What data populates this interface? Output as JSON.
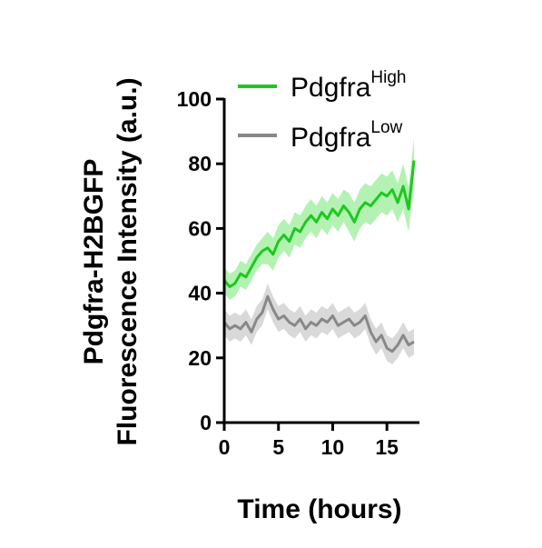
{
  "chart_data": {
    "type": "line",
    "xlabel": "Time (hours)",
    "ylabel_line1": "Pdgfra-H2BGFP",
    "ylabel_line2": "Fluorescence Intensity (a.u.)",
    "xlim": [
      0,
      18
    ],
    "ylim": [
      0,
      100
    ],
    "x_ticks": [
      0,
      5,
      10,
      15
    ],
    "y_ticks": [
      0,
      20,
      40,
      60,
      80,
      100
    ],
    "grid": false,
    "legend_position": "top-left",
    "series": [
      {
        "name_base": "Pdgfra",
        "name_sup": "High",
        "color": "#1ec81e",
        "band_color": "#a6f0a6",
        "x": [
          0,
          0.5,
          1,
          1.5,
          2,
          2.5,
          3,
          3.5,
          4,
          4.5,
          5,
          5.5,
          6,
          6.5,
          7,
          7.5,
          8,
          8.5,
          9,
          9.5,
          10,
          10.5,
          11,
          11.5,
          12,
          12.5,
          13,
          13.5,
          14,
          14.5,
          15,
          15.5,
          16,
          16.5,
          17,
          17.5
        ],
        "y": [
          44,
          42,
          43,
          46,
          45,
          48,
          51,
          53,
          54,
          52,
          56,
          58,
          56,
          60,
          59,
          62,
          64,
          62,
          65,
          63,
          66,
          64,
          67,
          65,
          62,
          66,
          68,
          67,
          69,
          71,
          70,
          72,
          68,
          73,
          66,
          81
        ],
        "err": [
          4,
          4,
          4,
          4,
          4,
          4,
          4,
          4,
          5,
          5,
          5,
          5,
          5,
          5,
          5,
          5,
          5,
          5,
          5,
          5,
          5,
          5,
          5,
          6,
          6,
          6,
          6,
          6,
          6,
          6,
          6,
          6,
          6,
          7,
          7,
          7
        ]
      },
      {
        "name_base": "Pdgfra",
        "name_sup": "Low",
        "color": "#888888",
        "band_color": "#d2d2d2",
        "x": [
          0,
          0.5,
          1,
          1.5,
          2,
          2.5,
          3,
          3.5,
          4,
          4.5,
          5,
          5.5,
          6,
          6.5,
          7,
          7.5,
          8,
          8.5,
          9,
          9.5,
          10,
          10.5,
          11,
          11.5,
          12,
          12.5,
          13,
          13.5,
          14,
          14.5,
          15,
          15.5,
          16,
          16.5,
          17,
          17.5
        ],
        "y": [
          31,
          29,
          30,
          29,
          31,
          28,
          32,
          34,
          39,
          35,
          32,
          33,
          31,
          30,
          32,
          29,
          31,
          30,
          32,
          31,
          33,
          30,
          31,
          32,
          30,
          31,
          33,
          28,
          25,
          27,
          23,
          22,
          24,
          27,
          24,
          25
        ],
        "err": [
          4,
          4,
          4,
          4,
          4,
          4,
          4,
          4,
          4,
          4,
          4,
          4,
          4,
          4,
          4,
          4,
          4,
          4,
          4,
          4,
          4,
          4,
          4,
          4,
          4,
          4,
          4,
          4,
          4,
          4,
          4,
          4,
          4,
          4,
          4,
          4
        ]
      }
    ]
  }
}
